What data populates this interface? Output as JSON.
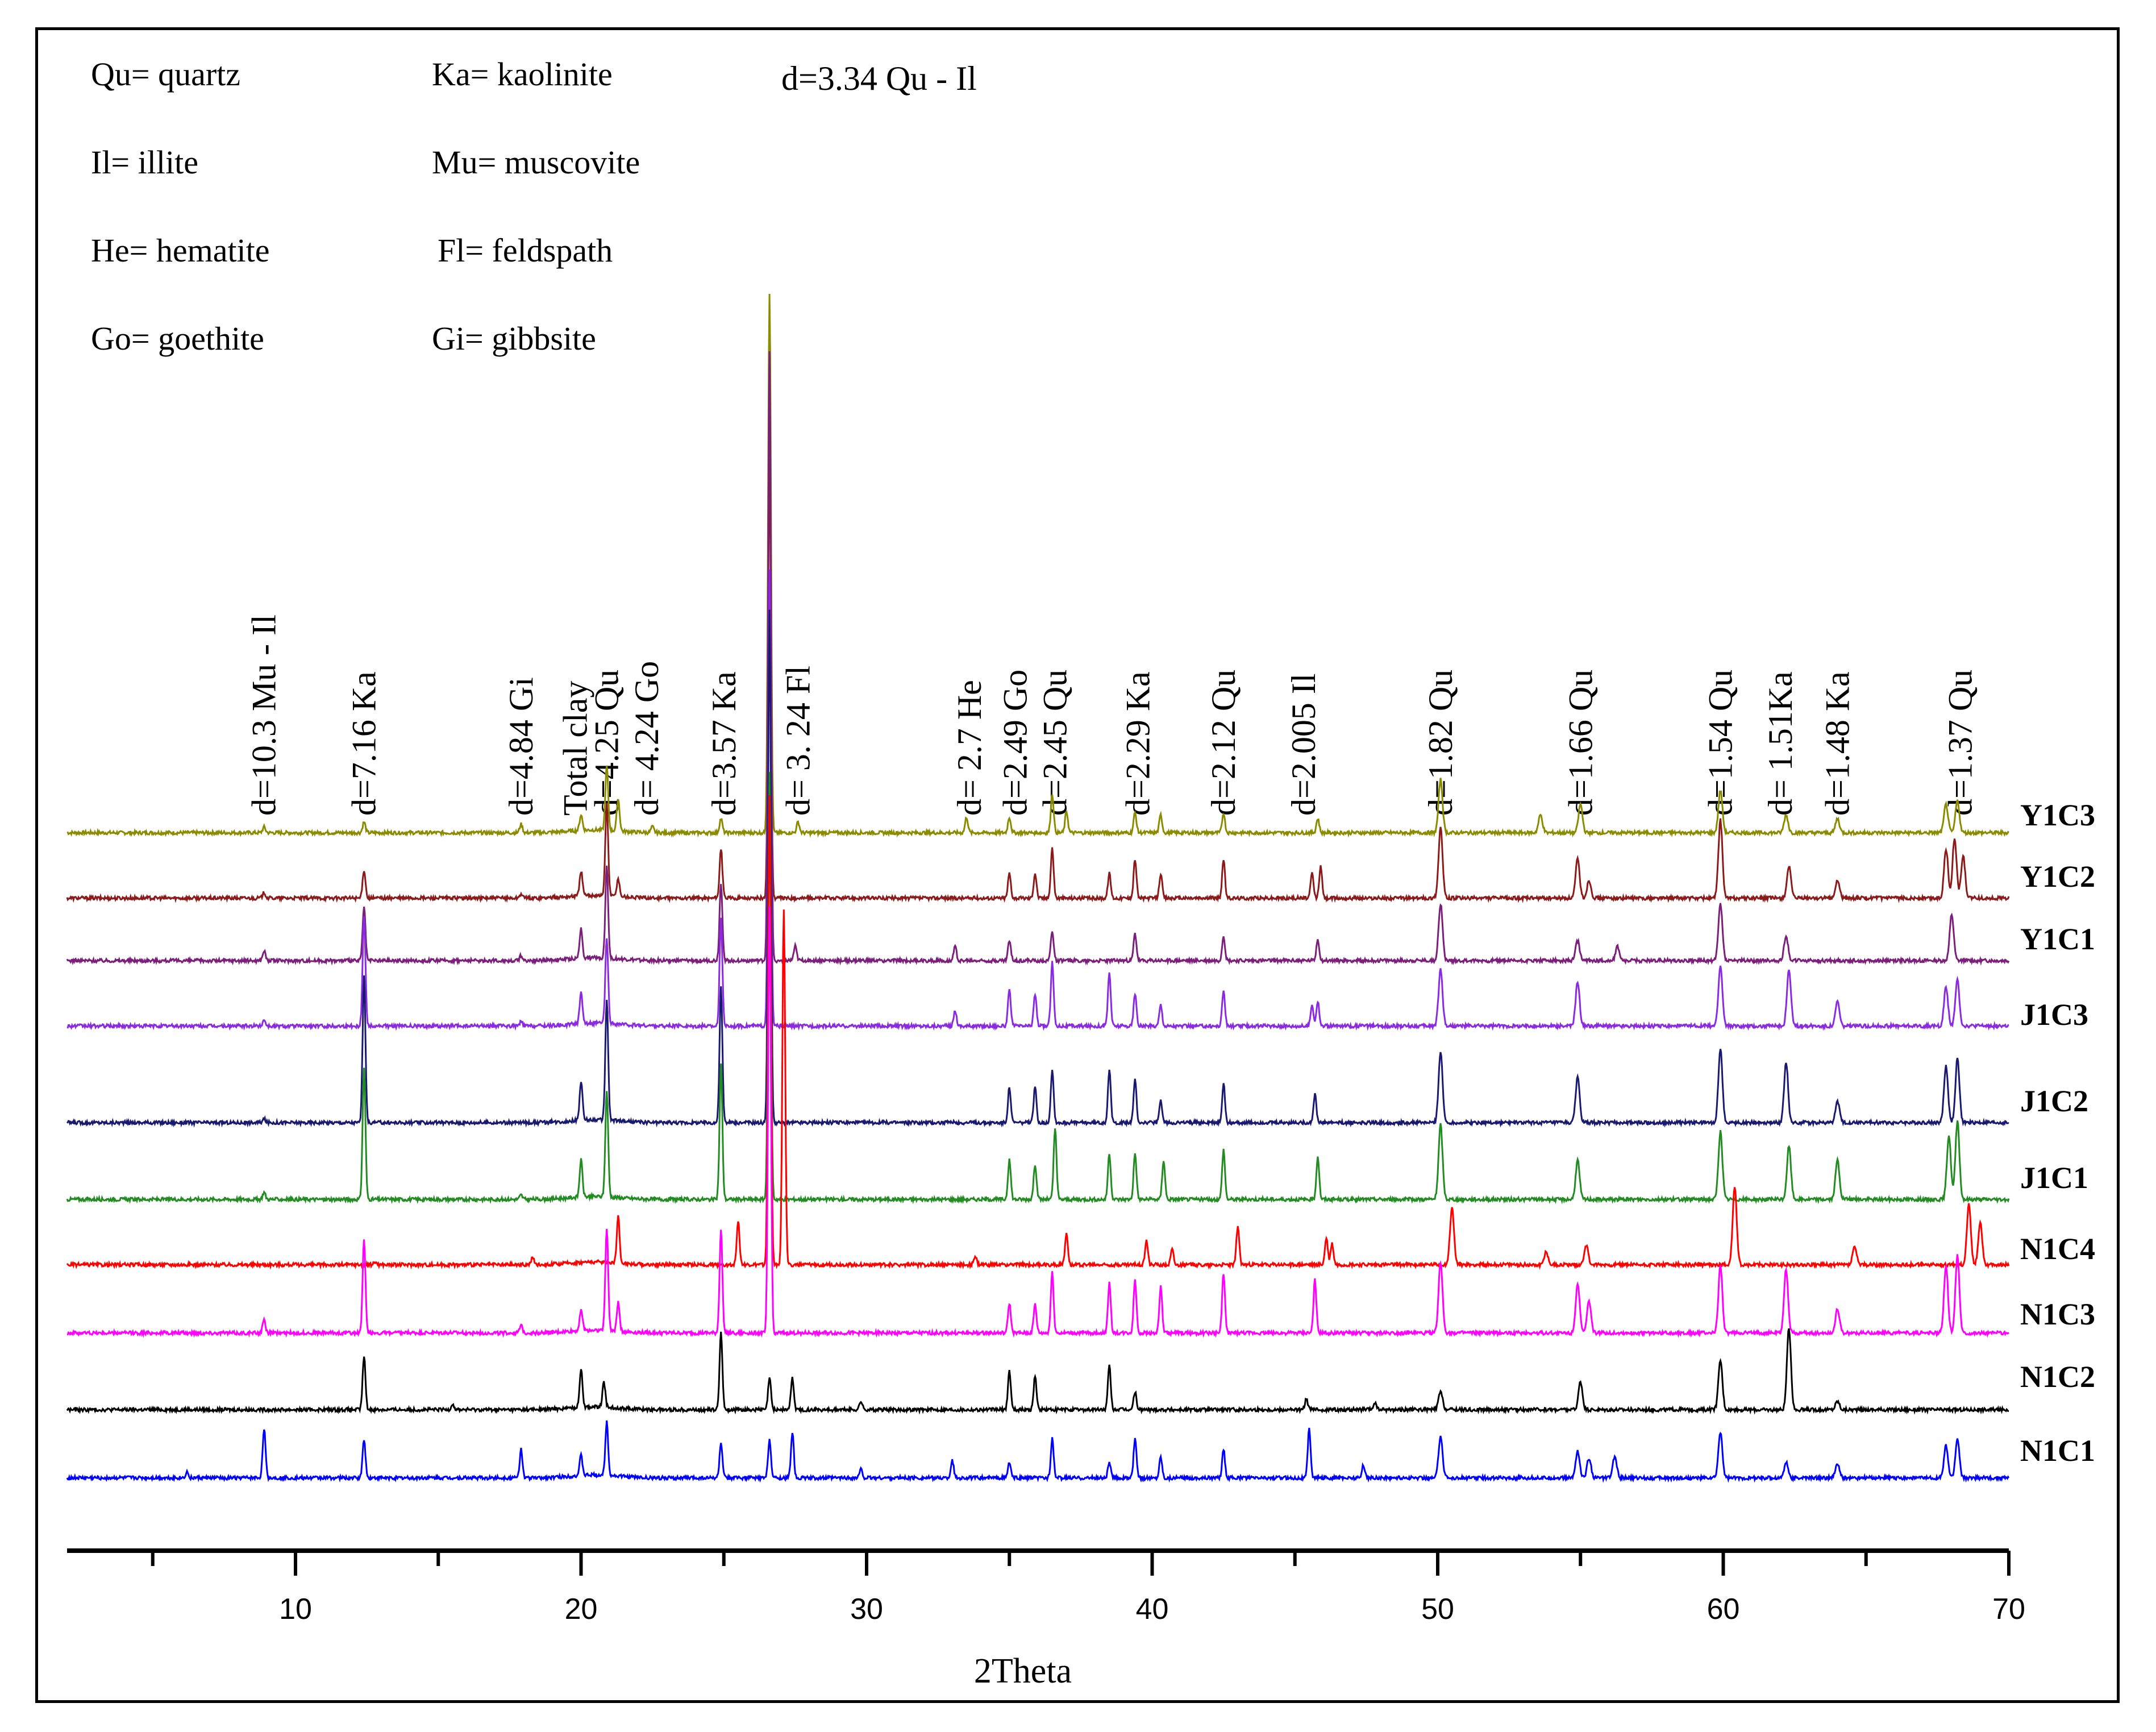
{
  "chart_data": {
    "type": "line",
    "title": "",
    "xlabel": "2Theta",
    "ylabel": "",
    "xlim": [
      2,
      70
    ],
    "x_ticks": [
      "10",
      "20",
      "30",
      "40",
      "50",
      "60",
      "70"
    ],
    "legend": [
      {
        "text": "Qu= quartz"
      },
      {
        "text": "Ka= kaolinite"
      },
      {
        "text": "Il= illite"
      },
      {
        "text": "Mu= muscovite"
      },
      {
        "text": "He= hematite"
      },
      {
        "text": "Fl= feldspath"
      },
      {
        "text": "Go= goethite"
      },
      {
        "text": "Gi= gibbsite"
      }
    ],
    "main_peak_label": "d=3.34 Qu - Il",
    "annotations": [
      {
        "text": "d=10.3 Mu - Il",
        "x": 8.9
      },
      {
        "text": "d=7.16  Ka",
        "x": 12.4
      },
      {
        "text": "d=4.84 Gi",
        "x": 17.9
      },
      {
        "text": "Total clay",
        "x": 19.8
      },
      {
        "text": "d=4.25 Qu",
        "x": 20.9
      },
      {
        "text": "d= 4.24 Go",
        "x": 22.3
      },
      {
        "text": "d=3.57 Ka",
        "x": 25.0
      },
      {
        "text": "d= 3. 24 Fl",
        "x": 27.6
      },
      {
        "text": "d= 2.7 He",
        "x": 33.6
      },
      {
        "text": "d=2.49  Go",
        "x": 35.2
      },
      {
        "text": "d=2.45 Qu",
        "x": 36.6
      },
      {
        "text": "d=2.29 Ka",
        "x": 39.5
      },
      {
        "text": "d=2.12 Qu",
        "x": 42.5
      },
      {
        "text": "d=2.005 Il",
        "x": 45.3
      },
      {
        "text": "d=1.82 Qu",
        "x": 50.1
      },
      {
        "text": "d=1.66 Qu",
        "x": 55.0
      },
      {
        "text": "d=1.54 Qu",
        "x": 59.9
      },
      {
        "text": "d= 1.51Ka",
        "x": 62.0
      },
      {
        "text": "d=1.48 Ka",
        "x": 64.0
      },
      {
        "text": "d=1.37 Qu",
        "x": 68.3
      }
    ],
    "series": [
      {
        "name": "Y1C3",
        "color": "#8b8b00",
        "baseline": 0.0,
        "peaks": [
          [
            8.9,
            8
          ],
          [
            12.4,
            15
          ],
          [
            17.9,
            12
          ],
          [
            20.0,
            22
          ],
          [
            20.9,
            90
          ],
          [
            21.3,
            45
          ],
          [
            22.5,
            8
          ],
          [
            24.9,
            20
          ],
          [
            26.6,
            760
          ],
          [
            27.6,
            15
          ],
          [
            33.5,
            22
          ],
          [
            35.0,
            22
          ],
          [
            36.5,
            55
          ],
          [
            37.0,
            30
          ],
          [
            39.4,
            28
          ],
          [
            40.3,
            25
          ],
          [
            42.5,
            28
          ],
          [
            45.8,
            20
          ],
          [
            50.1,
            75
          ],
          [
            53.6,
            25
          ],
          [
            55.0,
            40
          ],
          [
            59.9,
            60
          ],
          [
            62.2,
            25
          ],
          [
            64.0,
            20
          ],
          [
            67.8,
            40
          ],
          [
            68.2,
            45
          ]
        ]
      },
      {
        "name": "Y1C2",
        "color": "#8b1a1a",
        "baseline": 0.0,
        "peaks": [
          [
            8.9,
            8
          ],
          [
            12.4,
            40
          ],
          [
            17.9,
            6
          ],
          [
            20.0,
            35
          ],
          [
            20.9,
            130
          ],
          [
            21.3,
            25
          ],
          [
            24.9,
            70
          ],
          [
            26.6,
            620
          ],
          [
            35.0,
            35
          ],
          [
            35.9,
            35
          ],
          [
            36.5,
            70
          ],
          [
            38.5,
            35
          ],
          [
            39.4,
            55
          ],
          [
            40.3,
            35
          ],
          [
            42.5,
            55
          ],
          [
            45.6,
            35
          ],
          [
            45.9,
            45
          ],
          [
            50.1,
            100
          ],
          [
            54.9,
            55
          ],
          [
            55.3,
            25
          ],
          [
            59.9,
            110
          ],
          [
            62.3,
            45
          ],
          [
            64.0,
            25
          ],
          [
            67.8,
            70
          ],
          [
            68.1,
            85
          ],
          [
            68.4,
            60
          ]
        ]
      },
      {
        "name": "Y1C1",
        "color": "#7b1f7b",
        "baseline": 0.0,
        "peaks": [
          [
            8.9,
            14
          ],
          [
            12.4,
            75
          ],
          [
            17.9,
            7
          ],
          [
            20.0,
            42
          ],
          [
            20.9,
            130
          ],
          [
            24.9,
            110
          ],
          [
            26.6,
            860
          ],
          [
            27.5,
            20
          ],
          [
            33.1,
            20
          ],
          [
            35.0,
            28
          ],
          [
            36.5,
            42
          ],
          [
            39.4,
            38
          ],
          [
            42.5,
            35
          ],
          [
            45.8,
            30
          ],
          [
            50.1,
            80
          ],
          [
            54.9,
            28
          ],
          [
            56.3,
            20
          ],
          [
            59.9,
            80
          ],
          [
            62.2,
            35
          ],
          [
            68.0,
            65
          ]
        ]
      },
      {
        "name": "J1C3",
        "color": "#8a2be2",
        "baseline": 0.0,
        "peaks": [
          [
            8.9,
            9
          ],
          [
            12.4,
            155
          ],
          [
            17.9,
            6
          ],
          [
            20.0,
            45
          ],
          [
            20.9,
            120
          ],
          [
            24.9,
            150
          ],
          [
            26.6,
            640
          ],
          [
            33.1,
            22
          ],
          [
            35.0,
            50
          ],
          [
            35.9,
            45
          ],
          [
            36.5,
            90
          ],
          [
            38.5,
            75
          ],
          [
            39.4,
            45
          ],
          [
            40.3,
            30
          ],
          [
            42.5,
            50
          ],
          [
            45.6,
            30
          ],
          [
            45.8,
            35
          ],
          [
            50.1,
            80
          ],
          [
            54.9,
            62
          ],
          [
            59.9,
            85
          ],
          [
            62.3,
            80
          ],
          [
            64.0,
            35
          ],
          [
            67.8,
            55
          ],
          [
            68.2,
            65
          ]
        ]
      },
      {
        "name": "J1C2",
        "color": "#191970",
        "baseline": 0.0,
        "peaks": [
          [
            8.9,
            5
          ],
          [
            12.4,
            205
          ],
          [
            20.0,
            55
          ],
          [
            20.9,
            170
          ],
          [
            24.9,
            190
          ],
          [
            26.6,
            720
          ],
          [
            35.0,
            50
          ],
          [
            35.9,
            50
          ],
          [
            36.5,
            75
          ],
          [
            38.5,
            75
          ],
          [
            39.4,
            60
          ],
          [
            40.3,
            30
          ],
          [
            42.5,
            55
          ],
          [
            45.7,
            40
          ],
          [
            50.1,
            100
          ],
          [
            54.9,
            65
          ],
          [
            59.9,
            105
          ],
          [
            62.2,
            85
          ],
          [
            64.0,
            30
          ],
          [
            67.8,
            80
          ],
          [
            68.2,
            90
          ]
        ]
      },
      {
        "name": "J1C1",
        "color": "#228b22",
        "baseline": 0.0,
        "peaks": [
          [
            8.9,
            10
          ],
          [
            12.4,
            185
          ],
          [
            17.9,
            6
          ],
          [
            20.0,
            52
          ],
          [
            20.9,
            150
          ],
          [
            24.9,
            190
          ],
          [
            26.6,
            600
          ],
          [
            35.0,
            55
          ],
          [
            35.9,
            50
          ],
          [
            36.6,
            100
          ],
          [
            38.5,
            65
          ],
          [
            39.4,
            65
          ],
          [
            40.4,
            55
          ],
          [
            42.5,
            70
          ],
          [
            45.8,
            60
          ],
          [
            50.1,
            105
          ],
          [
            54.9,
            55
          ],
          [
            59.9,
            95
          ],
          [
            62.3,
            75
          ],
          [
            64.0,
            55
          ],
          [
            67.9,
            90
          ],
          [
            68.2,
            110
          ]
        ]
      },
      {
        "name": "N1C4",
        "color": "#ff0000",
        "baseline": 0.0,
        "peaks": [
          [
            12.8,
            4
          ],
          [
            18.3,
            10
          ],
          [
            21.3,
            65
          ],
          [
            25.5,
            62
          ],
          [
            26.6,
            660
          ],
          [
            27.1,
            500
          ],
          [
            33.8,
            12
          ],
          [
            37.0,
            45
          ],
          [
            39.8,
            35
          ],
          [
            40.7,
            22
          ],
          [
            43.0,
            55
          ],
          [
            46.1,
            38
          ],
          [
            46.3,
            30
          ],
          [
            50.5,
            80
          ],
          [
            53.8,
            18
          ],
          [
            55.2,
            28
          ],
          [
            60.4,
            110
          ],
          [
            64.6,
            25
          ],
          [
            68.6,
            85
          ],
          [
            69.0,
            60
          ]
        ]
      },
      {
        "name": "N1C3",
        "color": "#ff00ff",
        "baseline": 0.0,
        "peaks": [
          [
            8.9,
            18
          ],
          [
            12.4,
            130
          ],
          [
            17.9,
            10
          ],
          [
            20.0,
            30
          ],
          [
            20.9,
            145
          ],
          [
            21.3,
            40
          ],
          [
            24.9,
            145
          ],
          [
            26.6,
            600
          ],
          [
            35.0,
            42
          ],
          [
            35.9,
            40
          ],
          [
            36.5,
            85
          ],
          [
            38.5,
            70
          ],
          [
            39.4,
            75
          ],
          [
            40.3,
            65
          ],
          [
            42.5,
            85
          ],
          [
            45.7,
            75
          ],
          [
            50.1,
            100
          ],
          [
            54.9,
            70
          ],
          [
            55.3,
            45
          ],
          [
            59.9,
            95
          ],
          [
            62.2,
            90
          ],
          [
            64.0,
            35
          ],
          [
            67.8,
            95
          ],
          [
            68.2,
            110
          ]
        ]
      },
      {
        "name": "N1C2",
        "color": "#000000",
        "baseline": 0.0,
        "peaks": [
          [
            12.4,
            75
          ],
          [
            15.5,
            8
          ],
          [
            20.0,
            55
          ],
          [
            20.8,
            35
          ],
          [
            24.9,
            110
          ],
          [
            26.6,
            45
          ],
          [
            27.4,
            45
          ],
          [
            29.8,
            12
          ],
          [
            35.0,
            55
          ],
          [
            35.9,
            48
          ],
          [
            38.5,
            62
          ],
          [
            39.4,
            25
          ],
          [
            45.4,
            15
          ],
          [
            47.8,
            10
          ],
          [
            50.1,
            25
          ],
          [
            55.0,
            40
          ],
          [
            59.9,
            70
          ],
          [
            62.3,
            115
          ],
          [
            64.0,
            12
          ]
        ]
      },
      {
        "name": "N1C1",
        "color": "#0000ff",
        "baseline": 0.0,
        "peaks": [
          [
            6.2,
            8
          ],
          [
            8.9,
            70
          ],
          [
            12.4,
            55
          ],
          [
            17.9,
            40
          ],
          [
            20.0,
            28
          ],
          [
            20.9,
            75
          ],
          [
            24.9,
            50
          ],
          [
            26.6,
            55
          ],
          [
            27.4,
            65
          ],
          [
            29.8,
            12
          ],
          [
            33.0,
            25
          ],
          [
            35.0,
            22
          ],
          [
            36.5,
            55
          ],
          [
            38.5,
            22
          ],
          [
            39.4,
            55
          ],
          [
            40.3,
            30
          ],
          [
            42.5,
            40
          ],
          [
            45.5,
            70
          ],
          [
            47.4,
            18
          ],
          [
            50.1,
            60
          ],
          [
            54.9,
            38
          ],
          [
            55.3,
            28
          ],
          [
            56.2,
            30
          ],
          [
            59.9,
            65
          ],
          [
            62.2,
            22
          ],
          [
            64.0,
            20
          ],
          [
            67.8,
            45
          ],
          [
            68.2,
            55
          ]
        ]
      }
    ]
  }
}
